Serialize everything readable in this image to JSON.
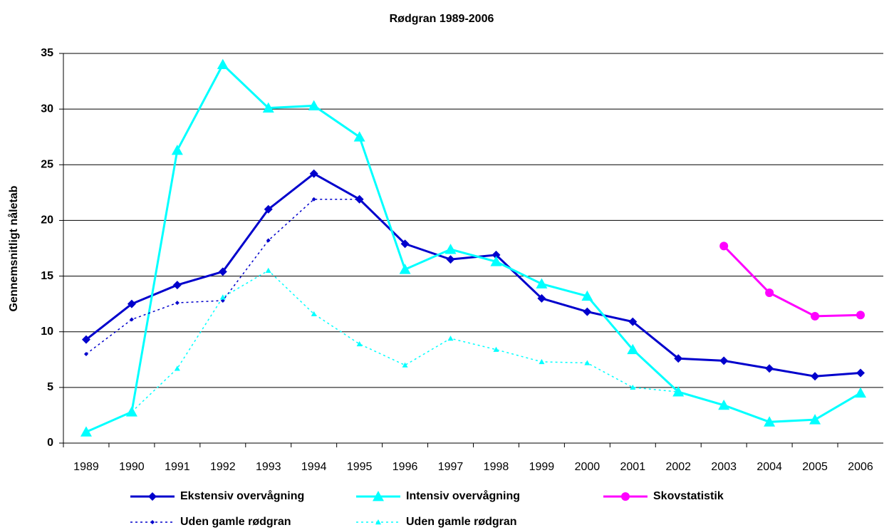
{
  "chart_data": {
    "type": "line",
    "title": "Rødgran 1989-2006",
    "y_label": "Gennemsnitligt nåletab",
    "categories": [
      "1989",
      "1990",
      "1991",
      "1992",
      "1993",
      "1994",
      "1995",
      "1996",
      "1997",
      "1998",
      "1999",
      "2000",
      "2001",
      "2002",
      "2003",
      "2004",
      "2005",
      "2006"
    ],
    "ylim": [
      0,
      35
    ],
    "yticks": [
      0,
      5,
      10,
      15,
      20,
      25,
      30,
      35
    ],
    "grid": true,
    "legend": "bottom",
    "series": [
      {
        "name": "Ekstensiv overvågning",
        "color": "#0000cc",
        "marker": "diamond",
        "dashed": false,
        "values": [
          9.3,
          12.5,
          14.2,
          15.4,
          21.0,
          24.2,
          21.9,
          17.9,
          16.5,
          16.9,
          13.0,
          11.8,
          10.9,
          7.6,
          7.4,
          6.7,
          6.0,
          6.3
        ]
      },
      {
        "name": "Intensiv overvågning",
        "color": "#00ffff",
        "marker": "triangle",
        "dashed": false,
        "values": [
          1.0,
          2.8,
          26.3,
          34.0,
          30.1,
          30.3,
          27.5,
          15.6,
          17.4,
          16.3,
          14.3,
          13.2,
          8.4,
          4.6,
          3.4,
          1.9,
          2.1,
          4.5
        ]
      },
      {
        "name": "Skovstatistik",
        "color": "#ff00ff",
        "marker": "circle",
        "dashed": false,
        "values": [
          null,
          null,
          null,
          null,
          null,
          null,
          null,
          null,
          null,
          null,
          null,
          null,
          null,
          null,
          17.7,
          13.5,
          11.4,
          11.5
        ]
      },
      {
        "name": "Uden gamle rødgran",
        "color": "#0000cc",
        "marker": "diamond",
        "dashed": true,
        "values": [
          8.0,
          11.1,
          12.6,
          12.8,
          18.2,
          21.9,
          21.9,
          null,
          null,
          null,
          null,
          null,
          null,
          null,
          null,
          null,
          null,
          null
        ]
      },
      {
        "name": "Uden gamle rødgran",
        "color": "#00ffff",
        "marker": "triangle",
        "dashed": true,
        "values": [
          null,
          2.8,
          6.7,
          13.1,
          15.5,
          11.6,
          8.9,
          7.0,
          9.4,
          8.4,
          7.3,
          7.2,
          5.0,
          4.6,
          null,
          null,
          null,
          null
        ]
      }
    ]
  }
}
